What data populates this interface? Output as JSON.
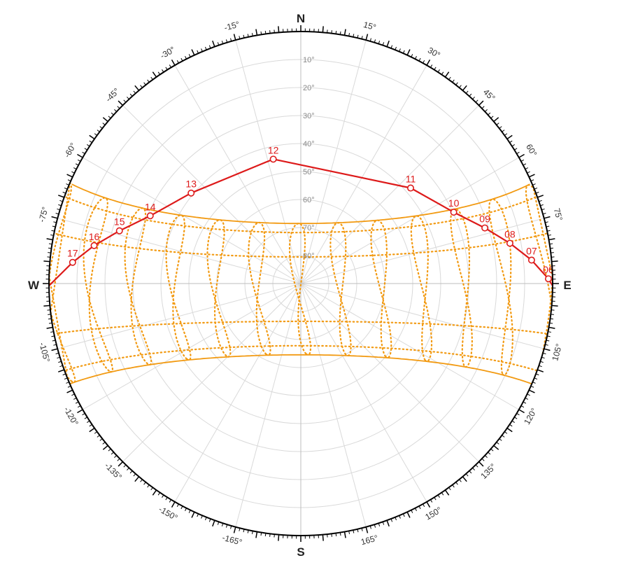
{
  "chart_data": {
    "type": "polar",
    "cardinals": {
      "n": "N",
      "e": "E",
      "s": "S",
      "w": "W"
    },
    "altitude_labels": [
      "10°",
      "20°",
      "30°",
      "40°",
      "50°",
      "60°",
      "70°",
      "80°"
    ],
    "altitude_values": [
      10,
      20,
      30,
      40,
      50,
      60,
      70,
      80
    ],
    "azimuth_labels": [
      {
        "az": 15,
        "text": "15°"
      },
      {
        "az": 30,
        "text": "30°"
      },
      {
        "az": 45,
        "text": "45°"
      },
      {
        "az": 60,
        "text": "60°"
      },
      {
        "az": 75,
        "text": "75°"
      },
      {
        "az": 105,
        "text": "105°"
      },
      {
        "az": 120,
        "text": "120°"
      },
      {
        "az": 135,
        "text": "135°"
      },
      {
        "az": 150,
        "text": "150°"
      },
      {
        "az": 165,
        "text": "165°"
      },
      {
        "az": -15,
        "text": "-15°"
      },
      {
        "az": -30,
        "text": "-30°"
      },
      {
        "az": -45,
        "text": "-45°"
      },
      {
        "az": -60,
        "text": "-60°"
      },
      {
        "az": -75,
        "text": "-75°"
      },
      {
        "az": -105,
        "text": "-105°"
      },
      {
        "az": -120,
        "text": "-120°"
      },
      {
        "az": -135,
        "text": "-135°"
      },
      {
        "az": -150,
        "text": "-150°"
      },
      {
        "az": -165,
        "text": "-165°"
      }
    ],
    "sun_path": {
      "color": "#dd1a1a",
      "points": [
        {
          "hour": "06",
          "azimuth": 88.9,
          "altitude": 1.5
        },
        {
          "hour": "07",
          "azimuth": 84.2,
          "altitude": 7.1
        },
        {
          "hour": "08",
          "azimuth": 79.1,
          "altitude": 13.9
        },
        {
          "hour": "09",
          "azimuth": 73.2,
          "altitude": 21.3
        },
        {
          "hour": "10",
          "azimuth": 65.0,
          "altitude": 29.7
        },
        {
          "hour": "11",
          "azimuth": 49.0,
          "altitude": 38.0
        },
        {
          "hour": "12",
          "azimuth": -12.5,
          "altitude": 44.5
        },
        {
          "hour": "13",
          "azimuth": -50.5,
          "altitude": 39.2
        },
        {
          "hour": "14",
          "azimuth": -65.8,
          "altitude": 31.0
        },
        {
          "hour": "15",
          "azimuth": -73.8,
          "altitude": 22.5
        },
        {
          "hour": "16",
          "azimuth": -79.6,
          "altitude": 14.9
        },
        {
          "hour": "17",
          "azimuth": -84.7,
          "altitude": 8.1
        }
      ]
    },
    "analemma_color": "#f29a12",
    "annual_envelope": {
      "north_limit_declination": 23.44,
      "south_limit_declination": -23.44
    },
    "site_latitude": 2,
    "grid": true
  }
}
